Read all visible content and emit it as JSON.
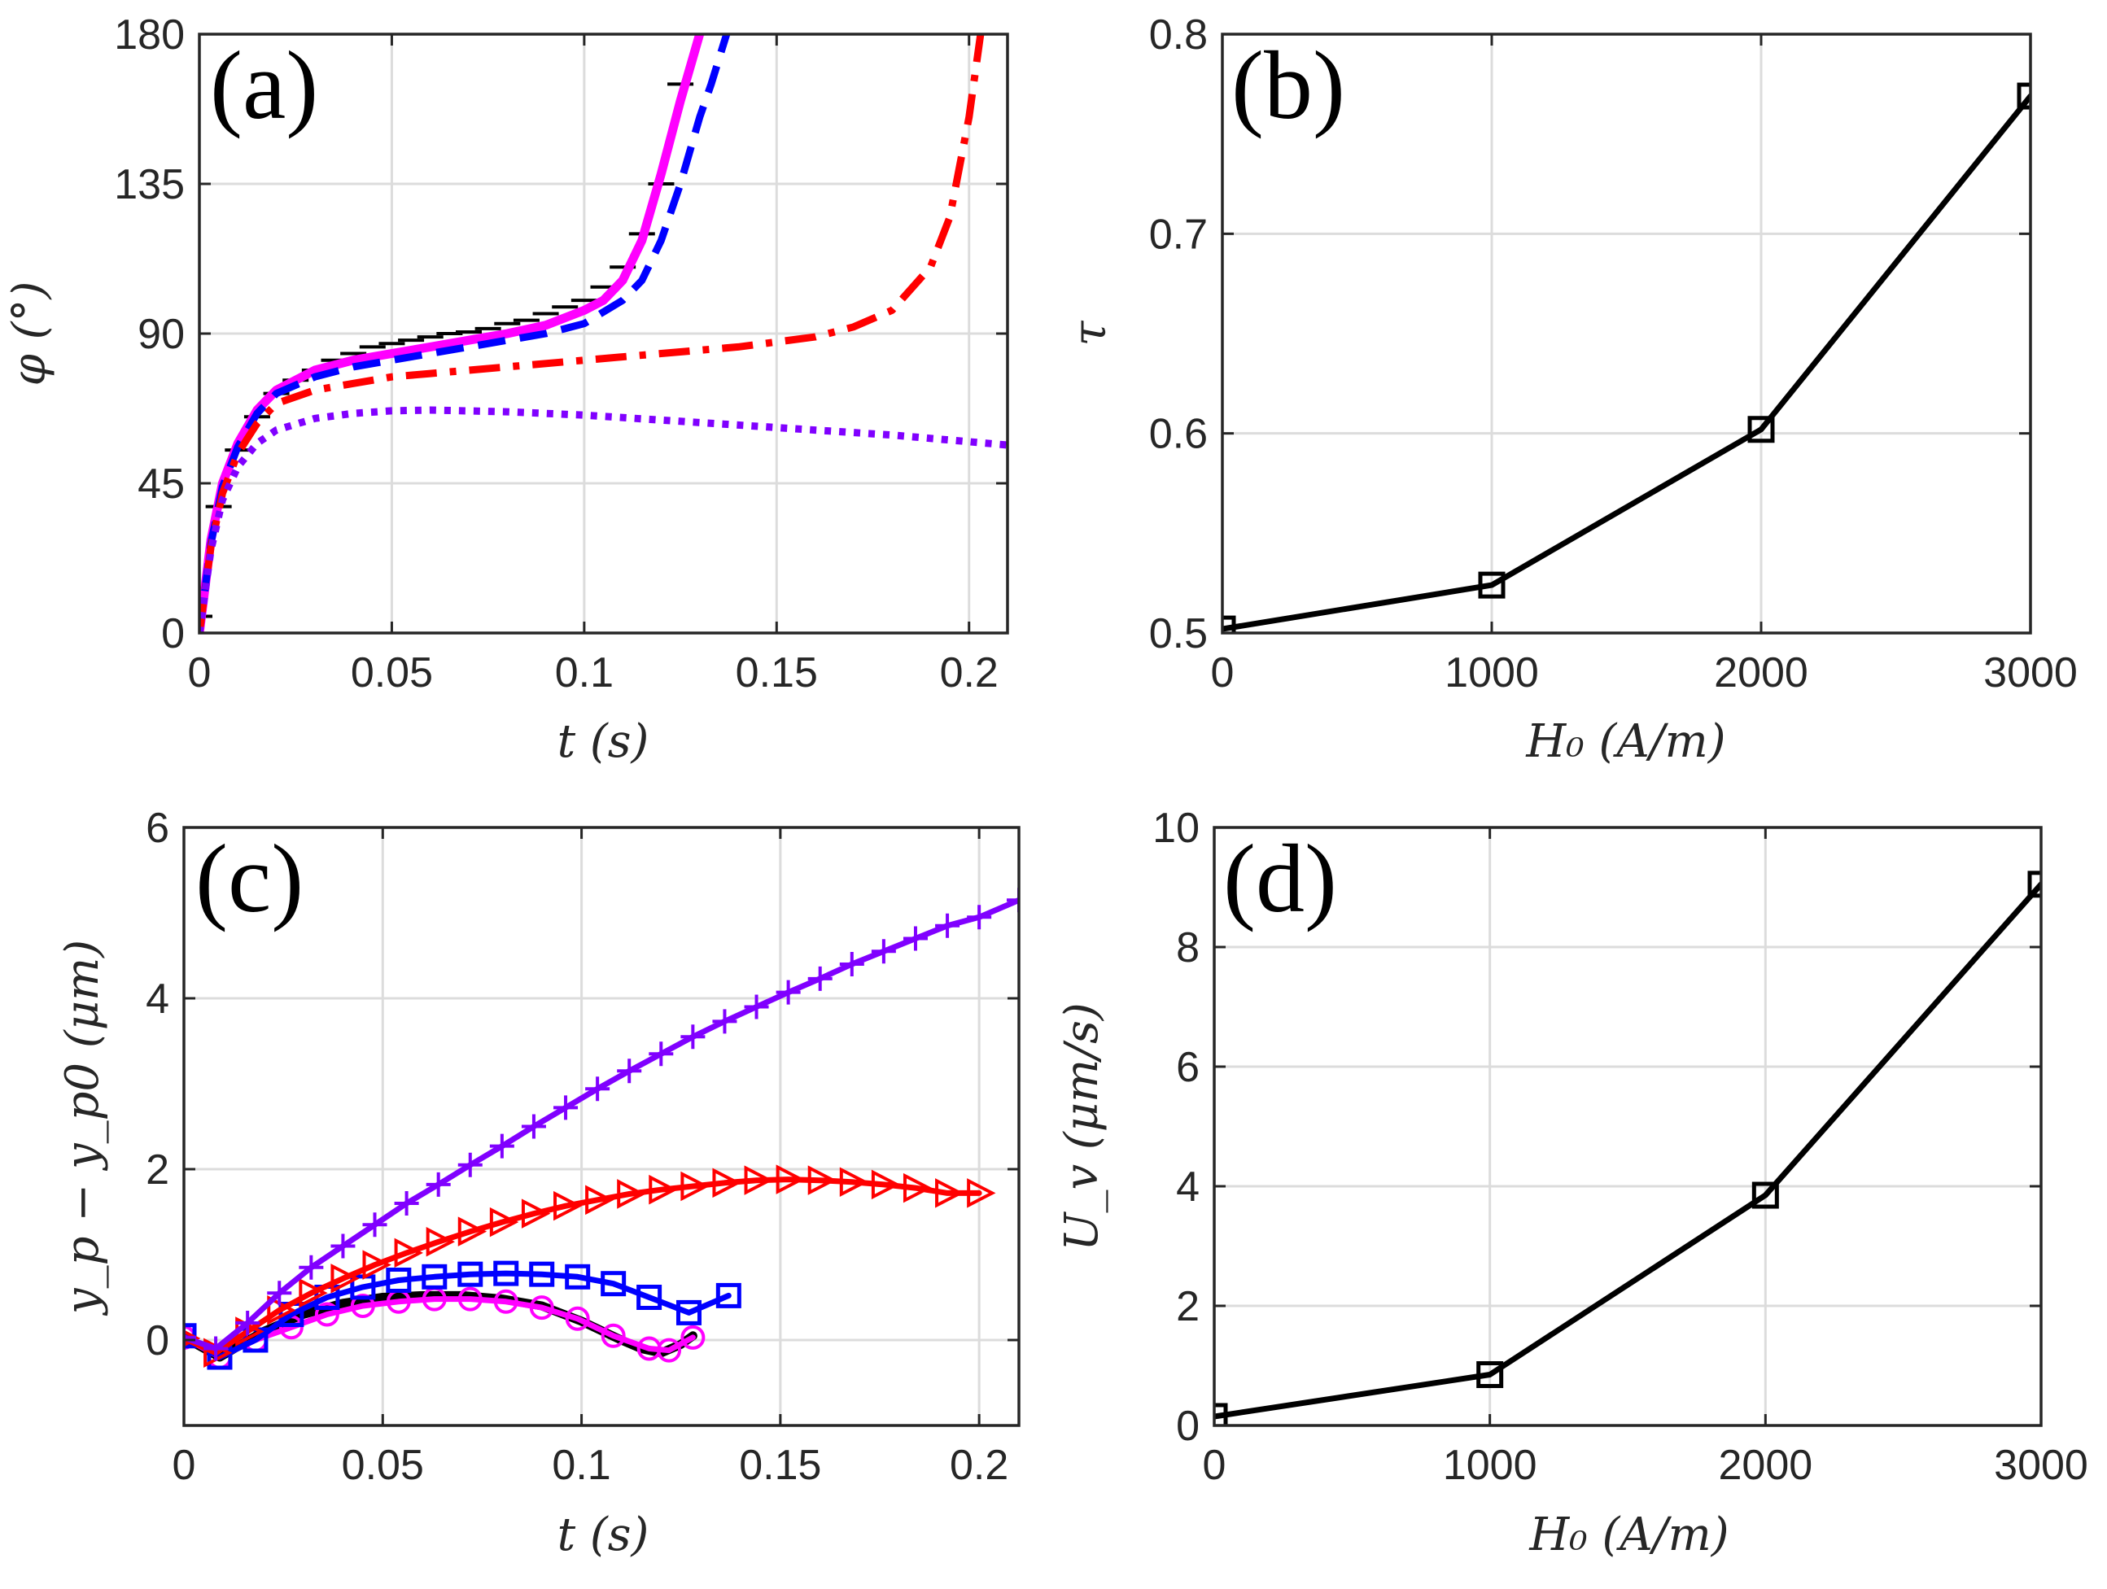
{
  "chart_data": [
    {
      "id": "a",
      "type": "line",
      "panel_label": "(a)",
      "xlabel": "t (s)",
      "ylabel": "φ (°)",
      "xlim": [
        0,
        0.21
      ],
      "ylim": [
        0,
        180
      ],
      "xticks": [
        0,
        0.05,
        0.1,
        0.15,
        0.2
      ],
      "xtick_labels": [
        "0",
        "0.05",
        "0.1",
        "0.15",
        "0.2"
      ],
      "yticks": [
        0,
        45,
        90,
        135,
        180
      ],
      "ytick_labels": [
        "0",
        "45",
        "90",
        "135",
        "180"
      ],
      "grid": true,
      "series": [
        {
          "name": "markers",
          "style": "hmarker",
          "color": "#000000",
          "x": [
            0.0,
            0.005,
            0.01,
            0.015,
            0.02,
            0.025,
            0.03,
            0.035,
            0.04,
            0.045,
            0.05,
            0.055,
            0.06,
            0.065,
            0.07,
            0.075,
            0.08,
            0.085,
            0.09,
            0.095,
            0.1,
            0.105,
            0.11,
            0.115,
            0.12,
            0.125
          ],
          "y": [
            5,
            38,
            55,
            65,
            72,
            76,
            79,
            82,
            84,
            86,
            87,
            88,
            89,
            90,
            90.5,
            91.5,
            93,
            94,
            96,
            98,
            100,
            104,
            110,
            120,
            135,
            165
          ]
        },
        {
          "name": "solid",
          "style": "solid",
          "color": "#ff00ff",
          "x": [
            0.0,
            0.003,
            0.006,
            0.01,
            0.015,
            0.02,
            0.03,
            0.04,
            0.05,
            0.06,
            0.07,
            0.08,
            0.09,
            0.1,
            0.105,
            0.11,
            0.115,
            0.12,
            0.125,
            0.128,
            0.13
          ],
          "y": [
            0,
            28,
            45,
            57,
            67,
            73,
            79,
            82,
            84,
            86,
            88,
            90,
            92.5,
            97,
            100,
            106,
            118,
            138,
            160,
            172,
            180
          ]
        },
        {
          "name": "dashed",
          "style": "dashed",
          "color": "#0000ff",
          "x": [
            0.0,
            0.003,
            0.006,
            0.01,
            0.015,
            0.02,
            0.03,
            0.04,
            0.05,
            0.06,
            0.07,
            0.08,
            0.09,
            0.1,
            0.11,
            0.115,
            0.12,
            0.125,
            0.13,
            0.133,
            0.137
          ],
          "y": [
            0,
            27,
            44,
            56,
            66,
            72,
            77,
            80,
            82,
            84,
            86,
            88,
            90,
            93,
            100,
            106,
            118,
            135,
            155,
            165,
            180
          ]
        },
        {
          "name": "dashdot",
          "style": "dashdot",
          "color": "#ff0000",
          "x": [
            0.0,
            0.003,
            0.006,
            0.01,
            0.015,
            0.02,
            0.03,
            0.04,
            0.05,
            0.06,
            0.08,
            0.1,
            0.12,
            0.14,
            0.16,
            0.17,
            0.18,
            0.19,
            0.195,
            0.2,
            0.203
          ],
          "y": [
            0,
            26,
            42,
            54,
            63,
            69,
            73,
            75,
            77,
            78,
            80,
            82,
            84,
            86,
            89,
            92,
            97,
            110,
            125,
            155,
            180
          ]
        },
        {
          "name": "dotted",
          "style": "dotted",
          "color": "#8000ff",
          "x": [
            0.0,
            0.003,
            0.006,
            0.01,
            0.015,
            0.02,
            0.03,
            0.04,
            0.05,
            0.06,
            0.08,
            0.1,
            0.12,
            0.14,
            0.16,
            0.18,
            0.2,
            0.21
          ],
          "y": [
            0,
            25,
            40,
            50,
            57,
            61,
            64.5,
            66,
            66.8,
            67,
            66.5,
            65.5,
            64,
            62.5,
            61,
            59.5,
            57.5,
            56.5
          ]
        }
      ]
    },
    {
      "id": "b",
      "type": "line",
      "panel_label": "(b)",
      "xlabel": "H₀ (A/m)",
      "ylabel": "τ",
      "xlim": [
        0,
        3000
      ],
      "ylim": [
        0.5,
        0.8
      ],
      "xticks": [
        0,
        1000,
        2000,
        3000
      ],
      "xtick_labels": [
        "0",
        "1000",
        "2000",
        "3000"
      ],
      "yticks": [
        0.5,
        0.6,
        0.7,
        0.8
      ],
      "ytick_labels": [
        "0.5",
        "0.6",
        "0.7",
        "0.8"
      ],
      "grid": true,
      "series": [
        {
          "name": "tau",
          "style": "solid",
          "marker": "square",
          "color": "#000000",
          "x": [
            0,
            1000,
            2000,
            3000
          ],
          "y": [
            0.502,
            0.524,
            0.602,
            0.769
          ]
        }
      ]
    },
    {
      "id": "c",
      "type": "line",
      "panel_label": "(c)",
      "xlabel": "t (s)",
      "ylabel": "y_p − y_p0 (μm)",
      "xlim": [
        0,
        0.21
      ],
      "ylim": [
        -1,
        6
      ],
      "xticks": [
        0,
        0.05,
        0.1,
        0.15,
        0.2
      ],
      "xtick_labels": [
        "0",
        "0.05",
        "0.1",
        "0.15",
        "0.2"
      ],
      "yticks": [
        0,
        2,
        4,
        6
      ],
      "ytick_labels": [
        "0",
        "2",
        "4",
        "6"
      ],
      "grid": true,
      "series": [
        {
          "name": "black",
          "style": "solid",
          "color": "#000000",
          "x": [
            0,
            0.009,
            0.02,
            0.03,
            0.04,
            0.05,
            0.06,
            0.07,
            0.08,
            0.09,
            0.1,
            0.11,
            0.115,
            0.12,
            0.125,
            0.128
          ],
          "y": [
            0.03,
            -0.2,
            0.1,
            0.3,
            0.43,
            0.5,
            0.52,
            0.52,
            0.48,
            0.4,
            0.22,
            0.0,
            -0.1,
            -0.15,
            -0.05,
            0.05
          ]
        },
        {
          "name": "magenta-circles",
          "style": "solid",
          "marker": "circle",
          "color": "#ff00ff",
          "x": [
            0,
            0.009,
            0.018,
            0.027,
            0.036,
            0.045,
            0.054,
            0.063,
            0.072,
            0.081,
            0.09,
            0.099,
            0.108,
            0.117,
            0.122,
            0.128
          ],
          "y": [
            0.03,
            -0.2,
            0.0,
            0.15,
            0.3,
            0.4,
            0.45,
            0.48,
            0.48,
            0.45,
            0.38,
            0.25,
            0.05,
            -0.1,
            -0.12,
            0.03
          ]
        },
        {
          "name": "blue-squares",
          "style": "solid",
          "marker": "square",
          "color": "#0000ff",
          "x": [
            0,
            0.009,
            0.018,
            0.027,
            0.036,
            0.045,
            0.054,
            0.063,
            0.072,
            0.081,
            0.09,
            0.099,
            0.108,
            0.117,
            0.127,
            0.137
          ],
          "y": [
            0.05,
            -0.2,
            0.0,
            0.3,
            0.5,
            0.62,
            0.7,
            0.74,
            0.77,
            0.78,
            0.77,
            0.74,
            0.66,
            0.5,
            0.32,
            0.52
          ]
        },
        {
          "name": "red-triangles",
          "style": "solid",
          "marker": "triangle-right",
          "color": "#ff0000",
          "x": [
            0,
            0.008,
            0.016,
            0.024,
            0.032,
            0.04,
            0.048,
            0.056,
            0.064,
            0.072,
            0.08,
            0.088,
            0.096,
            0.104,
            0.112,
            0.12,
            0.128,
            0.136,
            0.144,
            0.152,
            0.16,
            0.168,
            0.176,
            0.184,
            0.192,
            0.2
          ],
          "y": [
            0.02,
            -0.15,
            0.1,
            0.35,
            0.55,
            0.72,
            0.88,
            1.02,
            1.15,
            1.27,
            1.38,
            1.48,
            1.57,
            1.64,
            1.71,
            1.76,
            1.8,
            1.84,
            1.87,
            1.88,
            1.87,
            1.85,
            1.82,
            1.78,
            1.72,
            1.72
          ]
        },
        {
          "name": "purple-plus",
          "style": "solid",
          "marker": "plus",
          "color": "#8000ff",
          "x": [
            0,
            0.008,
            0.016,
            0.024,
            0.032,
            0.04,
            0.048,
            0.056,
            0.064,
            0.072,
            0.08,
            0.088,
            0.096,
            0.104,
            0.112,
            0.12,
            0.128,
            0.136,
            0.144,
            0.152,
            0.16,
            0.168,
            0.176,
            0.184,
            0.192,
            0.2,
            0.21
          ],
          "y": [
            0.03,
            -0.1,
            0.2,
            0.55,
            0.85,
            1.1,
            1.35,
            1.6,
            1.82,
            2.05,
            2.27,
            2.5,
            2.72,
            2.94,
            3.15,
            3.35,
            3.55,
            3.73,
            3.9,
            4.07,
            4.23,
            4.4,
            4.55,
            4.7,
            4.85,
            4.95,
            5.15
          ]
        }
      ]
    },
    {
      "id": "d",
      "type": "line",
      "panel_label": "(d)",
      "xlabel": "H₀ (A/m)",
      "ylabel": "U_v (μm/s)",
      "xlim": [
        0,
        3000
      ],
      "ylim": [
        0,
        10
      ],
      "xticks": [
        0,
        1000,
        2000,
        3000
      ],
      "xtick_labels": [
        "0",
        "1000",
        "2000",
        "3000"
      ],
      "yticks": [
        0,
        2,
        4,
        6,
        8,
        10
      ],
      "ytick_labels": [
        "0",
        "2",
        "4",
        "6",
        "8",
        "10"
      ],
      "grid": true,
      "series": [
        {
          "name": "Uv",
          "style": "solid",
          "marker": "square",
          "color": "#000000",
          "x": [
            0,
            1000,
            2000,
            3000
          ],
          "y": [
            0.15,
            0.85,
            3.85,
            9.05
          ]
        }
      ]
    }
  ]
}
